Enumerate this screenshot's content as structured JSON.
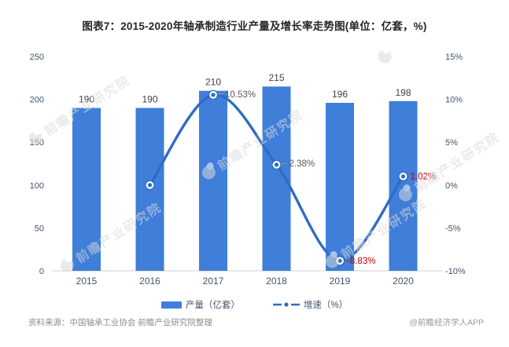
{
  "title": "图表7：2015-2020年轴承制造行业产量及增长率走势图(单位：亿套，%)",
  "chart_data": {
    "type": "bar",
    "categories": [
      "2015",
      "2016",
      "2017",
      "2018",
      "2019",
      "2020"
    ],
    "series": [
      {
        "name": "产量（亿套）",
        "type": "bar",
        "axis": "left",
        "values": [
          190,
          190,
          210,
          215,
          196,
          198
        ],
        "value_labels": [
          "190",
          "190",
          "210",
          "215",
          "196",
          "198"
        ],
        "color": "#3f7ed9"
      },
      {
        "name": "增速（%）",
        "type": "line",
        "axis": "right",
        "values": [
          null,
          0,
          10.53,
          2.38,
          -8.83,
          1.02
        ],
        "point_labels": [
          null,
          null,
          "10.53%",
          "2.38%",
          "-8.83%",
          "1.02%"
        ],
        "label_colors": [
          null,
          null,
          "#595959",
          "#595959",
          "#c00000",
          "#c00000"
        ],
        "color": "#2e6dc0",
        "smooth": true
      }
    ],
    "left_axis": {
      "min": 0,
      "max": 250,
      "ticks": [
        250,
        200,
        150,
        100,
        50,
        0
      ],
      "tick_labels": [
        "250",
        "200",
        "150",
        "100",
        "50",
        "0"
      ]
    },
    "right_axis": {
      "min": -10,
      "max": 15,
      "ticks": [
        15,
        10,
        5,
        0,
        -5,
        -10
      ],
      "tick_labels": [
        "15%",
        "10%",
        "5%",
        "0%",
        "-5%",
        "-10%"
      ]
    },
    "grid": false,
    "legend_position": "bottom",
    "colors": {
      "bar": "#3f7ed9",
      "line": "#2e6dc0",
      "axis_text": "#44546a",
      "bar_label": "#404040",
      "red_label": "#c00000",
      "baseline": "#d2d2d2"
    }
  },
  "legend": {
    "bar_label": "产量（亿套）",
    "line_label": "增速（%）"
  },
  "footer": {
    "source": "资料来源：中国轴承工业协会 前瞻产业研究院整理",
    "credit": "@前瞻经济学人APP"
  },
  "watermark": {
    "text": "前瞻产业研究院"
  }
}
